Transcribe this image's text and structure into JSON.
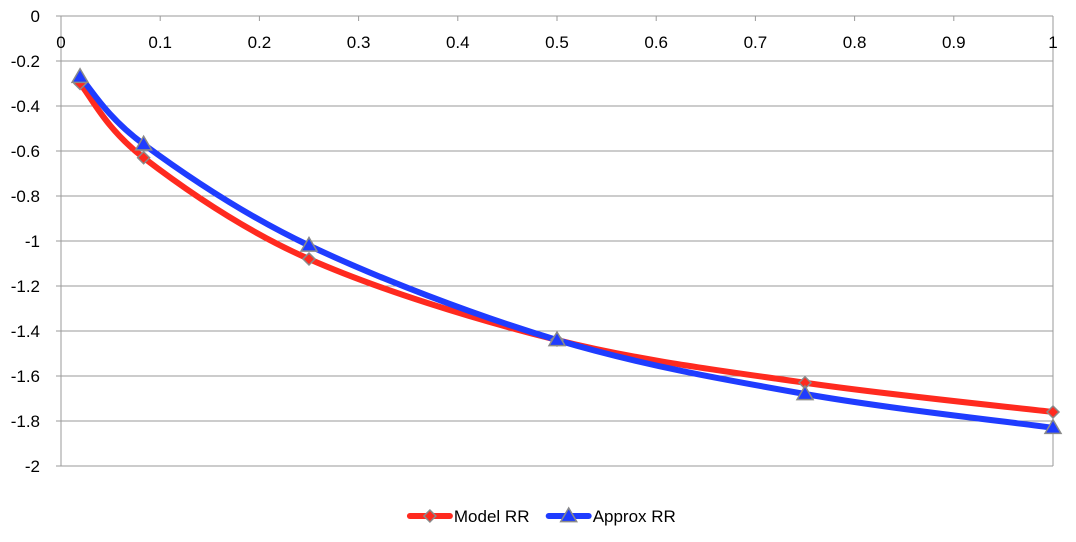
{
  "chart_data": {
    "type": "line",
    "title": "",
    "xlabel": "",
    "ylabel": "",
    "xlim": [
      0,
      1
    ],
    "ylim": [
      -2,
      0
    ],
    "x_ticks": [
      "0",
      "0.1",
      "0.2",
      "0.3",
      "0.4",
      "0.5",
      "0.6",
      "0.7",
      "0.8",
      "0.9",
      "1"
    ],
    "y_ticks": [
      "0",
      "-0.2",
      "-0.4",
      "-0.6",
      "-0.8",
      "-1",
      "-1.2",
      "-1.4",
      "-1.6",
      "-1.8",
      "-2"
    ],
    "grid": "horizontal",
    "x_axis_position": "top",
    "legend_position": "bottom",
    "smooth": true,
    "series": [
      {
        "name": "Model RR",
        "color": "#ff2a1f",
        "marker": "diamond",
        "x": [
          0.0192,
          0.0833,
          0.25,
          0.5,
          0.75,
          1.0
        ],
        "y": [
          -0.3,
          -0.63,
          -1.08,
          -1.44,
          -1.63,
          -1.76
        ]
      },
      {
        "name": "Approx RR",
        "color": "#1f3cff",
        "marker": "triangle",
        "x": [
          0.0192,
          0.0833,
          0.25,
          0.5,
          0.75,
          1.0
        ],
        "y": [
          -0.27,
          -0.57,
          -1.02,
          -1.44,
          -1.68,
          -1.83
        ]
      }
    ]
  }
}
